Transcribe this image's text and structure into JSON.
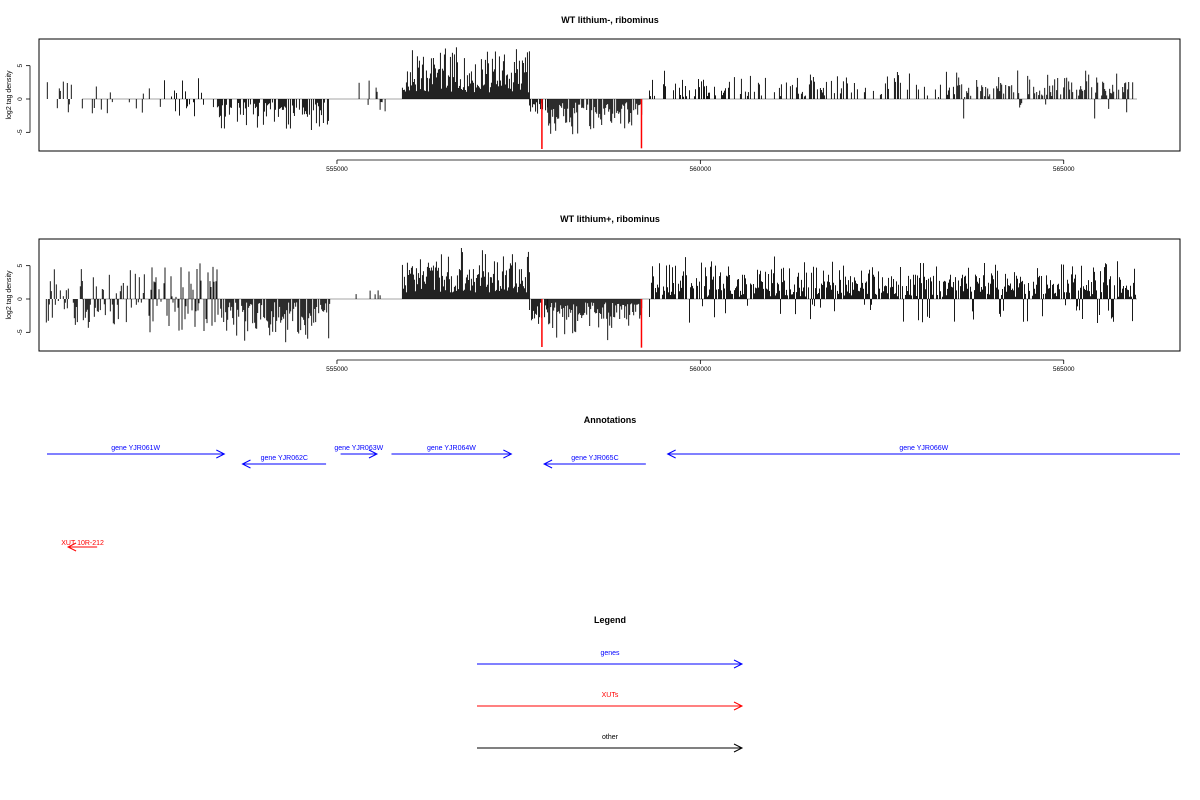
{
  "chart_data": [
    {
      "type": "bar",
      "title": "WT lithium-, ribominus",
      "ylabel": "log2 tag density",
      "xlabel": "",
      "xlim": [
        550900,
        566600
      ],
      "ylim": [
        -7.8,
        9
      ],
      "x_ticks": [
        "555000",
        "560000",
        "565000"
      ],
      "y_ticks": [
        "-5",
        "0",
        "5"
      ],
      "baseline": 0,
      "bar_color": "#000000",
      "highlight_color": "#ff0000",
      "highlights": [
        {
          "x": 557820,
          "y": -7.5
        },
        {
          "x": 559190,
          "y": -7.4
        }
      ],
      "regions": [
        {
          "start": 551000,
          "end": 552600,
          "min": -2.6,
          "max": 3.5,
          "density": 0.22,
          "sign": "mixed"
        },
        {
          "start": 552600,
          "end": 553300,
          "min": -2.8,
          "max": 3.2,
          "density": 0.25,
          "sign": "mixed"
        },
        {
          "start": 553300,
          "end": 554900,
          "min": -5.2,
          "max": -0.5,
          "density": 0.55,
          "sign": "neg"
        },
        {
          "start": 555250,
          "end": 555700,
          "min": -2.5,
          "max": 3.6,
          "density": 0.18,
          "sign": "mixed"
        },
        {
          "start": 555900,
          "end": 557650,
          "min": 1.0,
          "max": 8.2,
          "density": 1.0,
          "sign": "pos"
        },
        {
          "start": 557650,
          "end": 557900,
          "min": -3.0,
          "max": -0.5,
          "density": 0.6,
          "sign": "neg"
        },
        {
          "start": 557900,
          "end": 559200,
          "min": -6.2,
          "max": -0.5,
          "density": 0.85,
          "sign": "neg"
        },
        {
          "start": 559300,
          "end": 560400,
          "min": 0.3,
          "max": 4.4,
          "density": 0.4,
          "sign": "pos"
        },
        {
          "start": 560400,
          "end": 563500,
          "min": 0.3,
          "max": 4.8,
          "density": 0.32,
          "sign": "pos"
        },
        {
          "start": 563500,
          "end": 566000,
          "min": -3.2,
          "max": 4.5,
          "density": 0.55,
          "sign": "mostpos"
        }
      ]
    },
    {
      "type": "bar",
      "title": "WT lithium+, ribominus",
      "ylabel": "log2 tag density",
      "xlabel": "",
      "xlim": [
        550900,
        566600
      ],
      "ylim": [
        -7.8,
        9
      ],
      "x_ticks": [
        "555000",
        "560000",
        "565000"
      ],
      "y_ticks": [
        "-5",
        "0",
        "5"
      ],
      "baseline": 0,
      "bar_color": "#000000",
      "highlight_color": "#ff0000",
      "highlights": [
        {
          "x": 557820,
          "y": -7.2
        },
        {
          "x": 559190,
          "y": -7.3
        }
      ],
      "regions": [
        {
          "start": 551000,
          "end": 552400,
          "min": -4.5,
          "max": 4.5,
          "density": 0.7,
          "sign": "mixed"
        },
        {
          "start": 552400,
          "end": 553400,
          "min": -5.0,
          "max": 5.5,
          "density": 0.75,
          "sign": "mixed"
        },
        {
          "start": 553400,
          "end": 554900,
          "min": -6.8,
          "max": -0.5,
          "density": 0.85,
          "sign": "neg"
        },
        {
          "start": 555250,
          "end": 555700,
          "min": 0.5,
          "max": 2.8,
          "density": 0.2,
          "sign": "pos"
        },
        {
          "start": 555900,
          "end": 557650,
          "min": 1.0,
          "max": 8.3,
          "density": 1.0,
          "sign": "pos"
        },
        {
          "start": 557650,
          "end": 557900,
          "min": -5.0,
          "max": -0.5,
          "density": 0.8,
          "sign": "neg"
        },
        {
          "start": 557900,
          "end": 559200,
          "min": -6.8,
          "max": -0.5,
          "density": 1.0,
          "sign": "neg"
        },
        {
          "start": 559300,
          "end": 566000,
          "min": -3.6,
          "max": 6.6,
          "density": 0.85,
          "sign": "mostpos"
        }
      ]
    }
  ],
  "annotations": {
    "title": "Annotations",
    "genes": [
      {
        "label": "gene YJR061W",
        "start": 550700,
        "end": 553450,
        "row": 1,
        "strand": "+"
      },
      {
        "label": "gene YJR062C",
        "start": 553700,
        "end": 554850,
        "row": 2,
        "strand": "-"
      },
      {
        "label": "gene YJR063W",
        "start": 555050,
        "end": 555550,
        "row": 1,
        "strand": "+"
      },
      {
        "label": "gene YJR064W",
        "start": 555750,
        "end": 557400,
        "row": 1,
        "strand": "+"
      },
      {
        "label": "gene YJR065C",
        "start": 557850,
        "end": 559250,
        "row": 2,
        "strand": "-"
      },
      {
        "label": "gene YJR066W",
        "start": 559550,
        "end": 566800,
        "row": 1,
        "strand": "+"
      }
    ],
    "xuts": [
      {
        "label": "XUT 10R-212",
        "start": 551300,
        "end": 551700,
        "strand": "-"
      }
    ]
  },
  "legend": {
    "title": "Legend",
    "items": [
      {
        "label": "genes",
        "color": "#0000ff"
      },
      {
        "label": "XUTs",
        "color": "#ff0000"
      },
      {
        "label": "other",
        "color": "#000000"
      }
    ]
  },
  "colors": {
    "gene": "#0000ff",
    "xut": "#ff0000",
    "other": "#000000",
    "frame": "#000000",
    "baseline": "#888888"
  }
}
